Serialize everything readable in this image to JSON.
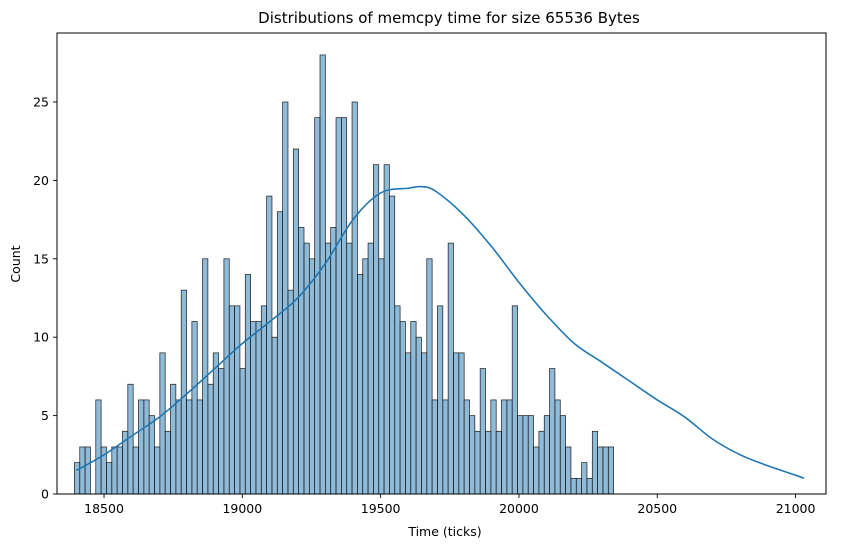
{
  "chart_data": {
    "type": "bar",
    "title": "Distributions of memcpy time for size 65536 Bytes",
    "xlabel": "Time (ticks)",
    "ylabel": "Count",
    "xlim": [
      18330,
      21110
    ],
    "ylim": [
      0,
      29.4
    ],
    "x_ticks": [
      18500,
      19000,
      19500,
      20000,
      20500,
      21000
    ],
    "y_ticks": [
      0,
      5,
      10,
      15,
      20,
      25
    ],
    "grid": false,
    "legend": "none",
    "bin_start": 18393,
    "bin_width": 19.3,
    "counts": [
      2,
      3,
      3,
      0,
      6,
      3,
      2,
      3,
      3,
      4,
      7,
      3,
      6,
      6,
      5,
      3,
      9,
      4,
      7,
      6,
      13,
      6,
      11,
      6,
      15,
      7,
      9,
      8,
      15,
      12,
      12,
      8,
      14,
      11,
      11,
      12,
      19,
      10,
      18,
      25,
      13,
      22,
      17,
      16,
      15,
      24,
      28,
      16,
      17,
      24,
      24,
      16,
      25,
      14,
      15,
      16,
      21,
      15,
      21,
      19,
      12,
      11,
      9,
      11,
      10,
      9,
      15,
      6,
      12,
      6,
      16,
      9,
      9,
      6,
      5,
      4,
      8,
      4,
      6,
      4,
      6,
      6,
      12,
      5,
      5,
      5,
      3,
      4,
      5,
      8,
      6,
      5,
      3,
      1,
      1,
      2,
      1,
      4,
      3,
      3,
      3
    ],
    "kde": {
      "x": [
        18400,
        18500,
        18600,
        18700,
        18800,
        18900,
        19000,
        19100,
        19200,
        19300,
        19400,
        19500,
        19600,
        19650,
        19700,
        19800,
        19900,
        20000,
        20100,
        20200,
        20300,
        20400,
        20500,
        20600,
        20700,
        20800,
        20900,
        21000,
        21030
      ],
      "y": [
        1.5,
        2.5,
        3.7,
        4.9,
        6.4,
        8.0,
        9.6,
        11.0,
        12.5,
        14.7,
        17.5,
        19.2,
        19.5,
        19.6,
        19.3,
        17.8,
        15.8,
        13.5,
        11.4,
        9.6,
        8.4,
        7.2,
        6.0,
        4.9,
        3.5,
        2.5,
        1.8,
        1.2,
        1.0
      ]
    },
    "colors": {
      "bar_fill": "#1f77b4",
      "bar_fill_opacity": 0.5,
      "bar_edge": "#1a1a1a",
      "kde_line": "#1f77b4",
      "axes": "#000000"
    }
  }
}
